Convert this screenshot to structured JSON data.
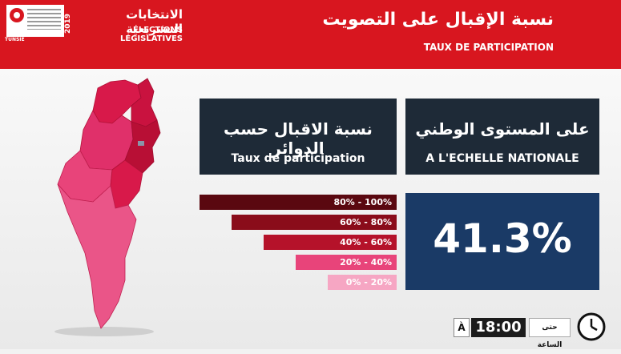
{
  "header": {
    "year": "2019",
    "logo_text": "TUNSIE",
    "title_ar_small": "الانتخابات التشريعية",
    "title_fr_small": "ÉLECTIONS LÉGISLATIVES",
    "title_ar_big": "نسبة الإقبال على التصويت",
    "title_fr_big": "TAUX DE PARTICIPATION"
  },
  "regional_box": {
    "title_ar": "نسبة الاقبال حسب الدوائر",
    "title_fr": "Taux de participation"
  },
  "national_box": {
    "title_ar": "على المستوى الوطني",
    "title_fr": "A L'ECHELLE NATIONALE",
    "value": "41.3%"
  },
  "legend": [
    {
      "label": "80% - 100%",
      "color": "#5a0810"
    },
    {
      "label": "60% - 80%",
      "color": "#8a0c1a"
    },
    {
      "label": "40% - 60%",
      "color": "#b5122a"
    },
    {
      "label": "20% - 40%",
      "color": "#e8447a"
    },
    {
      "label": "0% - 20%",
      "color": "#f6a6c3"
    }
  ],
  "time": {
    "prefix": "À",
    "value": "18:00",
    "label_ar": "حتى الساعة"
  },
  "icons": {
    "logo": "tunisia-flag-icon",
    "clock": "clock-icon"
  }
}
